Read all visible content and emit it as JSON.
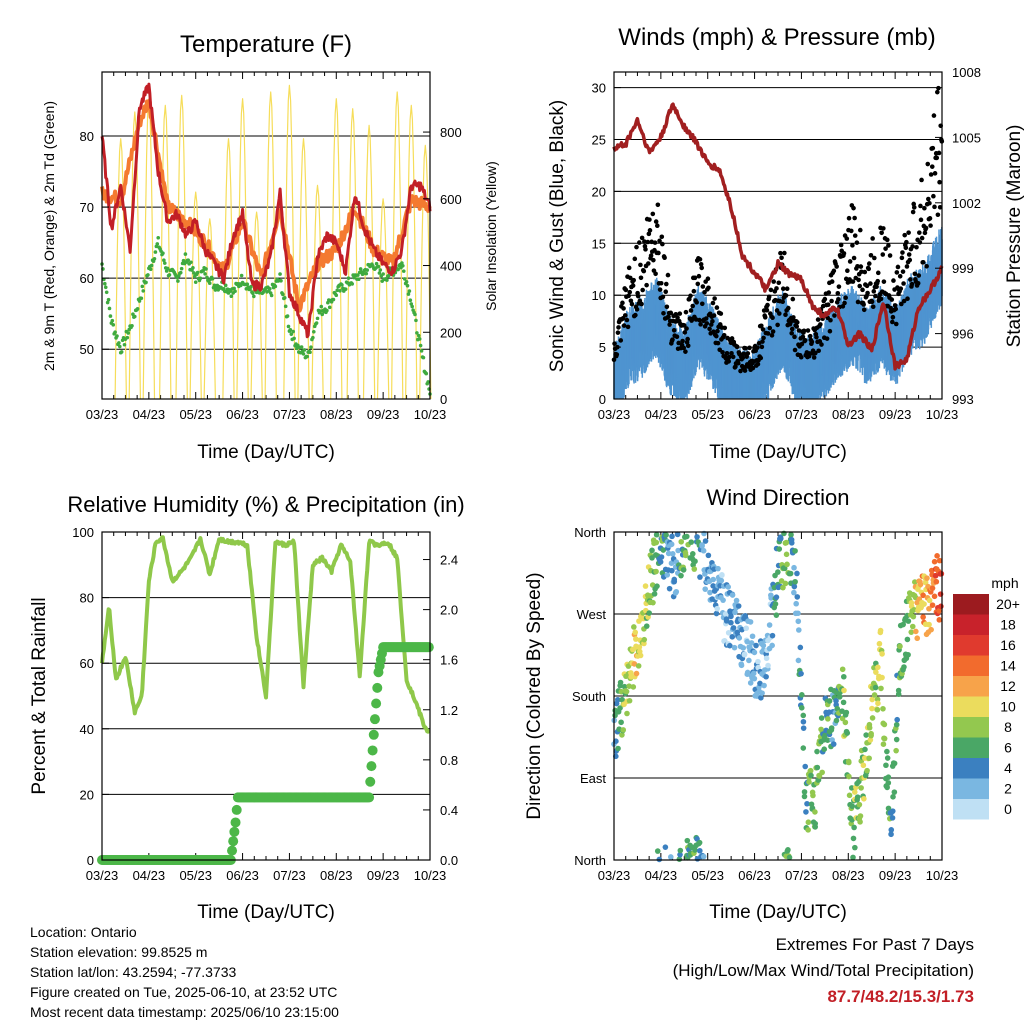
{
  "footer": {
    "location": "Location: Ontario",
    "elevation": "Station elevation: 99.8525 m",
    "latlon": "Station lat/lon: 43.2594; -77.3733",
    "created": "Figure created on Tue, 2025-06-10, at 23:52 UTC",
    "recent": "Most recent data timestamp: 2025/06/10 23:15:00"
  },
  "extremes": {
    "title": "Extremes For Past 7 Days",
    "subtitle": "(High/Low/Max Wind/Total Precipitation)",
    "values": "87.7/48.2/15.3/1.73"
  },
  "colors": {
    "temp_red": "#c21f26",
    "temp_orange": "#f47a30",
    "dewpoint_green": "#3faa3f",
    "solar_yellow": "#f6dd5a",
    "wind_blue": "#4f94d0",
    "gust_black": "#000000",
    "pressure_maroon": "#a11f20",
    "rh_lightgreen": "#8fc84a",
    "rain_green": "#4cb748"
  },
  "chart_data": [
    {
      "type": "line",
      "title": "Temperature (F)",
      "xlabel": "Time (Day/UTC)",
      "ylabel": "2m & 9m T (Red, Orange) & 2m Td (Green)",
      "ylabel_right": "Solar Insolation (Yellow)",
      "x_ticks": [
        "03/23",
        "04/23",
        "05/23",
        "06/23",
        "07/23",
        "08/23",
        "09/23",
        "10/23"
      ],
      "ylim": [
        43,
        89
      ],
      "y_ticks": [
        50,
        60,
        70,
        80
      ],
      "ylim_right": [
        0,
        980
      ],
      "y_ticks_right": [
        0,
        200,
        400,
        600,
        800
      ],
      "grid": true,
      "series": [
        {
          "name": "2m T",
          "color": "#c21f26",
          "x": [
            0,
            0.2,
            0.4,
            0.6,
            0.8,
            1.0,
            1.2,
            1.4,
            1.6,
            1.8,
            2.0,
            2.2,
            2.4,
            2.6,
            2.8,
            3.0,
            3.2,
            3.4,
            3.6,
            3.8,
            4.0,
            4.2,
            4.4,
            4.6,
            4.8,
            5.0,
            5.2,
            5.4,
            5.6,
            5.8,
            6.0,
            6.2,
            6.4,
            6.6,
            6.8,
            7.0
          ],
          "values": [
            80,
            67,
            73,
            64,
            84,
            87,
            75,
            68,
            69,
            66,
            68,
            64,
            62,
            60,
            66,
            69,
            59,
            59,
            63,
            72,
            58,
            55,
            52,
            63,
            66,
            65,
            61,
            72,
            67,
            64,
            62,
            61,
            64,
            73,
            73,
            70
          ]
        },
        {
          "name": "9m T",
          "color": "#f47a30",
          "x": [
            0,
            0.4,
            0.8,
            1.0,
            1.4,
            1.8,
            2.2,
            2.6,
            3.0,
            3.4,
            3.8,
            4.2,
            4.6,
            5.0,
            5.4,
            5.8,
            6.2,
            6.6,
            7.0
          ],
          "values": [
            72,
            71,
            82,
            85,
            70,
            68,
            65,
            61,
            68,
            60,
            70,
            56,
            62,
            64,
            70,
            64,
            62,
            71,
            70
          ]
        },
        {
          "name": "2m Td",
          "color": "#3faa3f",
          "x": [
            0,
            0.2,
            0.4,
            0.6,
            0.8,
            1.0,
            1.2,
            1.4,
            1.6,
            1.8,
            2.0,
            2.2,
            2.4,
            2.6,
            2.8,
            3.0,
            3.2,
            3.4,
            3.6,
            3.8,
            4.0,
            4.2,
            4.4,
            4.6,
            4.8,
            5.0,
            5.2,
            5.4,
            5.6,
            5.8,
            6.0,
            6.2,
            6.4,
            6.6,
            6.8,
            7.0
          ],
          "values": [
            62,
            54,
            50,
            53,
            57,
            61,
            65,
            61,
            60,
            63,
            60,
            61,
            59,
            59,
            58,
            60,
            58,
            58,
            58,
            60,
            53,
            50,
            49,
            55,
            56,
            58,
            59,
            60,
            61,
            62,
            60,
            61,
            62,
            57,
            50,
            44
          ]
        },
        {
          "name": "Solar Insolation",
          "axis": "right",
          "color": "#f6dd5a",
          "type": "daily_peaks",
          "x": [
            0.4,
            0.7,
            1.0,
            1.35,
            1.7,
            2.0,
            2.3,
            2.7,
            3.0,
            3.3,
            3.6,
            4.0,
            4.3,
            4.6,
            5.0,
            5.35,
            5.7,
            6.0,
            6.3,
            6.6,
            6.9
          ],
          "values": [
            780,
            860,
            900,
            880,
            910,
            620,
            540,
            780,
            900,
            560,
            920,
            940,
            780,
            640,
            900,
            870,
            820,
            600,
            920,
            880,
            760
          ]
        }
      ]
    },
    {
      "type": "scatter",
      "title": "Winds (mph) & Pressure (mb)",
      "xlabel": "Time (Day/UTC)",
      "ylabel": "Sonic Wind & Gust (Blue, Black)",
      "ylabel_right": "Station Pressure (Maroon)",
      "x_ticks": [
        "03/23",
        "04/23",
        "05/23",
        "06/23",
        "07/23",
        "08/23",
        "09/23",
        "10/23"
      ],
      "ylim": [
        0,
        31.5
      ],
      "y_ticks": [
        0,
        5,
        10,
        15,
        20,
        25,
        30
      ],
      "ylim_right": [
        993,
        1008
      ],
      "y_ticks_right": [
        993,
        996,
        999,
        1002,
        1005,
        1008
      ],
      "grid": true,
      "series": [
        {
          "name": "Sonic Wind",
          "color": "#4f94d0",
          "x": [
            0,
            0.3,
            0.6,
            0.9,
            1.2,
            1.5,
            1.8,
            2.1,
            2.4,
            2.7,
            3.0,
            3.3,
            3.6,
            3.9,
            4.2,
            4.5,
            4.8,
            5.1,
            5.4,
            5.7,
            6.0,
            6.3,
            6.6,
            6.9,
            7.0
          ],
          "values": [
            2,
            6,
            7,
            9,
            5,
            4,
            8,
            6,
            3,
            2,
            2,
            5,
            8,
            4,
            3,
            5,
            7,
            8,
            6,
            8,
            6,
            9,
            10,
            13,
            14
          ]
        },
        {
          "name": "Gust",
          "color": "#000000",
          "x": [
            0,
            0.3,
            0.6,
            0.9,
            1.2,
            1.5,
            1.8,
            2.1,
            2.4,
            2.7,
            3.0,
            3.3,
            3.6,
            3.9,
            4.2,
            4.5,
            4.8,
            5.1,
            5.4,
            5.7,
            6.0,
            6.3,
            6.6,
            6.9,
            7.0
          ],
          "values": [
            4,
            10,
            13,
            17,
            8,
            6,
            11,
            9,
            5,
            4,
            4,
            8,
            12,
            6,
            5,
            8,
            12,
            15,
            11,
            14,
            10,
            14,
            17,
            24,
            26
          ]
        },
        {
          "name": "Station Pressure",
          "axis": "right",
          "color": "#a11f20",
          "x": [
            0,
            0.25,
            0.5,
            0.75,
            1.0,
            1.25,
            1.5,
            1.75,
            2.0,
            2.25,
            2.5,
            2.75,
            3.0,
            3.25,
            3.5,
            3.75,
            4.0,
            4.25,
            4.5,
            4.75,
            5.0,
            5.25,
            5.5,
            5.75,
            6.0,
            6.25,
            6.5,
            6.75,
            7.0
          ],
          "values": [
            1004.5,
            1004.7,
            1005.8,
            1004.3,
            1005.0,
            1006.5,
            1005.5,
            1004.8,
            1003.8,
            1003.5,
            1001.8,
            999.5,
            998.8,
            998.0,
            999.2,
            998.7,
            998.5,
            997.2,
            996.8,
            997.2,
            995.5,
            996.0,
            995.2,
            997.5,
            994.5,
            994.8,
            997.2,
            998.0,
            999.0
          ]
        }
      ]
    },
    {
      "type": "line",
      "title": "Relative Humidity (%) & Precipitation (in)",
      "xlabel": "Time (Day/UTC)",
      "ylabel": "Percent & Total Rainfall",
      "x_ticks": [
        "03/23",
        "04/23",
        "05/23",
        "06/23",
        "07/23",
        "08/23",
        "09/23",
        "10/23"
      ],
      "ylim": [
        0,
        100
      ],
      "y_ticks": [
        0,
        20,
        40,
        60,
        80,
        100
      ],
      "ylim_right": [
        0,
        2.62
      ],
      "y_ticks_right": [
        0.0,
        0.4,
        0.8,
        1.2,
        1.6,
        2.0,
        2.4
      ],
      "grid": true,
      "series": [
        {
          "name": "Relative Humidity",
          "color": "#8fc84a",
          "x": [
            0,
            0.15,
            0.3,
            0.5,
            0.7,
            0.85,
            1.0,
            1.15,
            1.3,
            1.5,
            1.7,
            1.9,
            2.1,
            2.3,
            2.5,
            2.7,
            2.9,
            3.1,
            3.3,
            3.5,
            3.7,
            3.9,
            4.1,
            4.3,
            4.5,
            4.7,
            4.9,
            5.1,
            5.3,
            5.5,
            5.7,
            5.9,
            6.1,
            6.3,
            6.5,
            6.7,
            6.9,
            7.0
          ],
          "values": [
            60,
            77,
            55,
            62,
            45,
            50,
            85,
            97,
            98,
            85,
            88,
            92,
            98,
            87,
            98,
            97,
            97,
            96,
            68,
            50,
            97,
            96,
            97,
            53,
            90,
            92,
            88,
            96,
            91,
            56,
            97,
            96,
            97,
            92,
            55,
            48,
            40,
            39
          ]
        },
        {
          "name": "Total Rainfall",
          "axis": "right",
          "color": "#4cb748",
          "x": [
            0,
            2.75,
            2.85,
            2.9,
            5.7,
            5.8,
            5.9,
            6.0,
            7.0
          ],
          "values": [
            0.0,
            0.0,
            0.3,
            0.5,
            0.5,
            1.0,
            1.5,
            1.7,
            1.7
          ]
        }
      ]
    },
    {
      "type": "scatter",
      "title": "Wind Direction",
      "xlabel": "Time (Day/UTC)",
      "ylabel": "Direction (Colored By Speed)",
      "x_ticks": [
        "03/23",
        "04/23",
        "05/23",
        "06/23",
        "07/23",
        "08/23",
        "09/23",
        "10/23"
      ],
      "y_ticks": [
        "North",
        "East",
        "South",
        "West",
        "North"
      ],
      "grid": true,
      "legend": {
        "title": "mph",
        "placement": "right",
        "labels": [
          "20+",
          "18",
          "16",
          "14",
          "12",
          "10",
          "8",
          "6",
          "4",
          "2",
          "0"
        ],
        "colors": [
          "#9c1b1f",
          "#c8222b",
          "#e03a2e",
          "#f26b2d",
          "#f7a34a",
          "#ebdc5d",
          "#93c84f",
          "#4aa766",
          "#3b80c0",
          "#7ab7e1",
          "#bfe0f4"
        ]
      },
      "series": [
        {
          "name": "Direction",
          "x": [
            0,
            0.1,
            0.2,
            0.3,
            0.45,
            0.6,
            0.75,
            0.9,
            1.0,
            1.1,
            1.3,
            1.5,
            1.7,
            1.9,
            2.1,
            2.3,
            2.5,
            2.7,
            2.9,
            3.1,
            3.3,
            3.5,
            3.7,
            3.9,
            4.1,
            4.3,
            4.5,
            4.7,
            4.9,
            5.1,
            5.3,
            5.5,
            5.7,
            5.9,
            6.1,
            6.3,
            6.5,
            6.7,
            6.9,
            7.0
          ],
          "values": [
            130,
            160,
            170,
            200,
            230,
            260,
            300,
            330,
            350,
            340,
            320,
            350,
            355,
            340,
            300,
            280,
            260,
            250,
            230,
            200,
            240,
            320,
            340,
            300,
            60,
            70,
            150,
            160,
            180,
            30,
            90,
            170,
            220,
            20,
            220,
            260,
            280,
            280,
            300,
            290
          ],
          "speeds": [
            4,
            6,
            8,
            9,
            10,
            9,
            8,
            6,
            6,
            4,
            3,
            7,
            6,
            4,
            3,
            2,
            2,
            3,
            2,
            3,
            2,
            5,
            7,
            3,
            6,
            8,
            6,
            4,
            8,
            7,
            8,
            9,
            8,
            6,
            6,
            8,
            11,
            12,
            15,
            16
          ]
        }
      ]
    }
  ]
}
